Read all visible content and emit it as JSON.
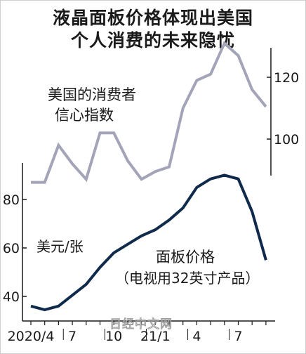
{
  "title_line1": "液晶面板价格体现出美国",
  "title_line2": "个人消费的未来隐忧",
  "watermark": "日经中文网",
  "chart_data": {
    "type": "line",
    "x": [
      "2020/4",
      "2020/5",
      "2020/6",
      "2020/7",
      "2020/8",
      "2020/9",
      "2020/10",
      "2020/11",
      "2020/12",
      "2021/1",
      "2021/2",
      "2021/3",
      "2021/4",
      "2021/5",
      "2021/6",
      "2021/7",
      "2021/8",
      "2021/9"
    ],
    "x_tick_labels": [
      "2020/4",
      "7",
      "10",
      "21/1",
      "4",
      "7"
    ],
    "series": [
      {
        "label_lines": [
          "面板价格",
          "（电视用32英寸产品）"
        ],
        "axis": "left",
        "unit_label": "美元/张",
        "color": "#102a4c",
        "values": [
          36,
          34.5,
          36,
          40.5,
          45,
          52,
          58,
          61.5,
          65,
          67.5,
          71.5,
          76.5,
          85,
          88.5,
          90,
          88.5,
          75,
          55
        ]
      },
      {
        "label_lines": [
          "美国的消费者",
          "信心指数"
        ],
        "axis": "right",
        "color": "#a3a4b8",
        "values": [
          86,
          86,
          98,
          92,
          87,
          102,
          102,
          93,
          87,
          89.5,
          91,
          110,
          119,
          121,
          131,
          127,
          116,
          110.5
        ]
      }
    ],
    "left_axis": {
      "ylim": [
        30,
        100
      ],
      "ticks": [
        40,
        60,
        80
      ]
    },
    "right_axis": {
      "ylim": [
        80,
        140
      ],
      "ticks": [
        100,
        120
      ]
    },
    "grid": false
  }
}
